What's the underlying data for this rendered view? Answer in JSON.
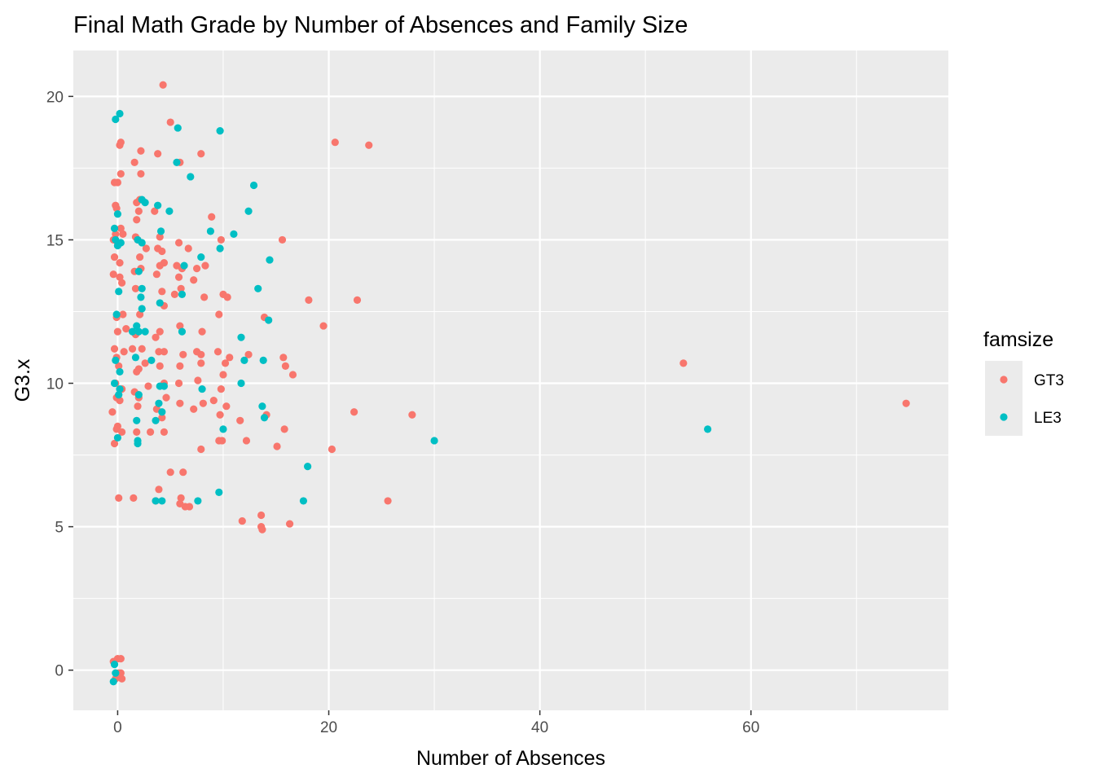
{
  "chart_data": {
    "type": "scatter",
    "title": "Final Math Grade by Number of Absences and Family Size",
    "xlabel": "Number of Absences",
    "ylabel": "G3.x",
    "xlim": [
      -4.2,
      78.7
    ],
    "ylim": [
      -1.4,
      21.6
    ],
    "x_ticks": [
      0,
      20,
      40,
      60
    ],
    "x_tick_labels": [
      "0",
      "20",
      "40",
      "60"
    ],
    "y_ticks": [
      0,
      5,
      10,
      15,
      20
    ],
    "y_tick_labels": [
      "0",
      "5",
      "10",
      "15",
      "20"
    ],
    "grid": true,
    "panel_background": "#EBEBEB",
    "legend": {
      "title": "famsize",
      "position": "right"
    },
    "series": [
      {
        "name": "GT3",
        "color": "#F8766D",
        "points": [
          [
            4.3,
            20.4
          ],
          [
            5.0,
            19.1
          ],
          [
            20.6,
            18.4
          ],
          [
            23.8,
            18.3
          ],
          [
            0.2,
            18.3
          ],
          [
            0.3,
            18.4
          ],
          [
            2.2,
            18.1
          ],
          [
            3.8,
            18.0
          ],
          [
            7.9,
            18.0
          ],
          [
            1.6,
            17.7
          ],
          [
            5.9,
            17.7
          ],
          [
            0.3,
            17.3
          ],
          [
            2.2,
            17.3
          ],
          [
            -0.3,
            17.0
          ],
          [
            0.0,
            17.0
          ],
          [
            -0.2,
            16.2
          ],
          [
            -0.1,
            16.1
          ],
          [
            1.8,
            16.3
          ],
          [
            2.1,
            16.4
          ],
          [
            3.5,
            16.0
          ],
          [
            2.0,
            16.0
          ],
          [
            8.9,
            15.8
          ],
          [
            1.8,
            15.7
          ],
          [
            -0.2,
            15.2
          ],
          [
            0.3,
            15.4
          ],
          [
            0.5,
            15.2
          ],
          [
            0.0,
            14.9
          ],
          [
            -0.4,
            15.0
          ],
          [
            1.9,
            15.0
          ],
          [
            1.7,
            15.1
          ],
          [
            4.0,
            15.1
          ],
          [
            5.8,
            14.9
          ],
          [
            9.8,
            15.0
          ],
          [
            15.6,
            15.0
          ],
          [
            2.7,
            14.7
          ],
          [
            3.8,
            14.7
          ],
          [
            4.2,
            14.6
          ],
          [
            6.7,
            14.7
          ],
          [
            -0.3,
            14.4
          ],
          [
            0.2,
            14.2
          ],
          [
            2.1,
            14.4
          ],
          [
            4.0,
            14.1
          ],
          [
            4.4,
            14.2
          ],
          [
            5.6,
            14.1
          ],
          [
            6.1,
            14.0
          ],
          [
            7.5,
            14.0
          ],
          [
            8.3,
            14.1
          ],
          [
            -0.4,
            13.8
          ],
          [
            0.2,
            13.7
          ],
          [
            1.6,
            13.9
          ],
          [
            2.2,
            14.0
          ],
          [
            3.7,
            13.8
          ],
          [
            5.8,
            13.7
          ],
          [
            7.2,
            13.6
          ],
          [
            0.4,
            13.5
          ],
          [
            1.7,
            13.3
          ],
          [
            4.2,
            13.2
          ],
          [
            6.0,
            13.3
          ],
          [
            10.0,
            13.1
          ],
          [
            10.4,
            13.0
          ],
          [
            8.2,
            13.0
          ],
          [
            5.4,
            13.1
          ],
          [
            18.1,
            12.9
          ],
          [
            22.7,
            12.9
          ],
          [
            -0.1,
            12.3
          ],
          [
            0.5,
            12.4
          ],
          [
            2.1,
            12.4
          ],
          [
            4.4,
            12.7
          ],
          [
            9.6,
            12.4
          ],
          [
            13.9,
            12.3
          ],
          [
            0.0,
            11.8
          ],
          [
            0.8,
            11.9
          ],
          [
            1.7,
            11.7
          ],
          [
            3.6,
            11.6
          ],
          [
            4.0,
            11.8
          ],
          [
            5.9,
            12.0
          ],
          [
            8.0,
            11.8
          ],
          [
            19.5,
            12.0
          ],
          [
            -0.3,
            11.2
          ],
          [
            -0.1,
            10.9
          ],
          [
            0.6,
            11.1
          ],
          [
            1.4,
            11.2
          ],
          [
            2.3,
            11.2
          ],
          [
            3.9,
            11.1
          ],
          [
            4.4,
            11.1
          ],
          [
            6.2,
            11.0
          ],
          [
            7.5,
            11.1
          ],
          [
            7.9,
            11.0
          ],
          [
            9.5,
            11.1
          ],
          [
            10.2,
            10.7
          ],
          [
            10.6,
            10.9
          ],
          [
            12.4,
            11.0
          ],
          [
            15.7,
            10.9
          ],
          [
            15.9,
            10.6
          ],
          [
            0.1,
            10.6
          ],
          [
            1.8,
            10.4
          ],
          [
            2.0,
            10.5
          ],
          [
            2.6,
            10.7
          ],
          [
            4.0,
            10.6
          ],
          [
            5.9,
            10.6
          ],
          [
            7.9,
            10.7
          ],
          [
            10.0,
            10.3
          ],
          [
            16.6,
            10.3
          ],
          [
            53.6,
            10.7
          ],
          [
            -0.2,
            10.0
          ],
          [
            0.4,
            9.8
          ],
          [
            1.6,
            9.7
          ],
          [
            2.9,
            9.9
          ],
          [
            4.4,
            10.0
          ],
          [
            5.8,
            10.0
          ],
          [
            7.6,
            10.1
          ],
          [
            9.8,
            9.8
          ],
          [
            -0.1,
            9.5
          ],
          [
            0.2,
            9.4
          ],
          [
            2.0,
            9.5
          ],
          [
            4.6,
            9.5
          ],
          [
            5.9,
            9.3
          ],
          [
            7.2,
            9.1
          ],
          [
            8.1,
            9.3
          ],
          [
            9.1,
            9.4
          ],
          [
            10.3,
            9.2
          ],
          [
            -0.5,
            9.0
          ],
          [
            1.9,
            9.2
          ],
          [
            3.7,
            9.1
          ],
          [
            4.2,
            8.8
          ],
          [
            9.7,
            8.9
          ],
          [
            22.4,
            9.0
          ],
          [
            27.9,
            8.9
          ],
          [
            74.7,
            9.3
          ],
          [
            -0.1,
            8.4
          ],
          [
            0.0,
            8.5
          ],
          [
            0.4,
            8.3
          ],
          [
            1.8,
            8.3
          ],
          [
            3.1,
            8.3
          ],
          [
            4.4,
            8.3
          ],
          [
            9.6,
            8.0
          ],
          [
            9.9,
            8.0
          ],
          [
            11.6,
            8.7
          ],
          [
            12.2,
            8.0
          ],
          [
            14.1,
            8.9
          ],
          [
            15.1,
            7.8
          ],
          [
            15.8,
            8.4
          ],
          [
            -0.3,
            7.9
          ],
          [
            7.9,
            7.7
          ],
          [
            20.3,
            7.7
          ],
          [
            5.0,
            6.9
          ],
          [
            6.2,
            6.9
          ],
          [
            3.9,
            6.3
          ],
          [
            0.1,
            6.0
          ],
          [
            1.5,
            6.0
          ],
          [
            3.6,
            5.9
          ],
          [
            6.0,
            6.0
          ],
          [
            6.4,
            5.7
          ],
          [
            6.8,
            5.7
          ],
          [
            5.9,
            5.8
          ],
          [
            25.6,
            5.9
          ],
          [
            11.8,
            5.2
          ],
          [
            13.6,
            5.4
          ],
          [
            13.6,
            5.0
          ],
          [
            13.7,
            4.9
          ],
          [
            16.3,
            5.1
          ],
          [
            -0.4,
            0.3
          ],
          [
            0.0,
            0.4
          ],
          [
            0.3,
            0.4
          ],
          [
            0.1,
            -0.1
          ],
          [
            -0.2,
            -0.3
          ],
          [
            0.4,
            -0.3
          ],
          [
            0.3,
            -0.1
          ]
        ]
      },
      {
        "name": "LE3",
        "color": "#00BFC4",
        "points": [
          [
            0.2,
            19.4
          ],
          [
            -0.2,
            19.2
          ],
          [
            5.7,
            18.9
          ],
          [
            9.7,
            18.8
          ],
          [
            5.6,
            17.7
          ],
          [
            6.9,
            17.2
          ],
          [
            12.9,
            16.9
          ],
          [
            2.3,
            16.4
          ],
          [
            2.6,
            16.3
          ],
          [
            3.8,
            16.2
          ],
          [
            4.9,
            16.0
          ],
          [
            12.4,
            16.0
          ],
          [
            0.0,
            15.9
          ],
          [
            -0.3,
            15.4
          ],
          [
            4.1,
            15.3
          ],
          [
            8.8,
            15.3
          ],
          [
            11.0,
            15.2
          ],
          [
            -0.2,
            15.0
          ],
          [
            0.3,
            14.9
          ],
          [
            1.9,
            15.0
          ],
          [
            2.3,
            14.9
          ],
          [
            0.0,
            14.8
          ],
          [
            9.7,
            14.7
          ],
          [
            7.9,
            14.4
          ],
          [
            14.4,
            14.3
          ],
          [
            6.3,
            14.1
          ],
          [
            2.0,
            13.9
          ],
          [
            0.1,
            13.2
          ],
          [
            2.3,
            13.3
          ],
          [
            2.2,
            13.0
          ],
          [
            6.1,
            13.1
          ],
          [
            13.3,
            13.3
          ],
          [
            -0.1,
            12.4
          ],
          [
            4.0,
            12.8
          ],
          [
            2.3,
            12.6
          ],
          [
            14.3,
            12.2
          ],
          [
            1.8,
            12.0
          ],
          [
            1.4,
            11.8
          ],
          [
            2.0,
            11.8
          ],
          [
            2.6,
            11.8
          ],
          [
            6.1,
            11.8
          ],
          [
            11.7,
            11.6
          ],
          [
            12.0,
            10.8
          ],
          [
            13.8,
            10.8
          ],
          [
            1.7,
            10.9
          ],
          [
            3.2,
            10.8
          ],
          [
            -0.2,
            10.8
          ],
          [
            0.2,
            10.4
          ],
          [
            -0.3,
            10.0
          ],
          [
            0.2,
            9.8
          ],
          [
            4.0,
            9.9
          ],
          [
            4.4,
            9.9
          ],
          [
            8.0,
            9.8
          ],
          [
            11.7,
            10.0
          ],
          [
            0.1,
            9.6
          ],
          [
            2.0,
            9.6
          ],
          [
            3.9,
            9.3
          ],
          [
            13.7,
            9.2
          ],
          [
            1.8,
            8.7
          ],
          [
            3.6,
            8.7
          ],
          [
            13.9,
            8.8
          ],
          [
            4.2,
            9.0
          ],
          [
            10.0,
            8.4
          ],
          [
            0.0,
            8.1
          ],
          [
            1.9,
            8.0
          ],
          [
            1.9,
            7.9
          ],
          [
            30.0,
            8.0
          ],
          [
            55.9,
            8.4
          ],
          [
            18.0,
            7.1
          ],
          [
            3.6,
            5.9
          ],
          [
            4.2,
            5.9
          ],
          [
            7.6,
            5.9
          ],
          [
            9.6,
            6.2
          ],
          [
            17.6,
            5.9
          ],
          [
            -0.3,
            0.2
          ],
          [
            -0.2,
            -0.1
          ],
          [
            -0.4,
            -0.4
          ]
        ]
      }
    ]
  }
}
